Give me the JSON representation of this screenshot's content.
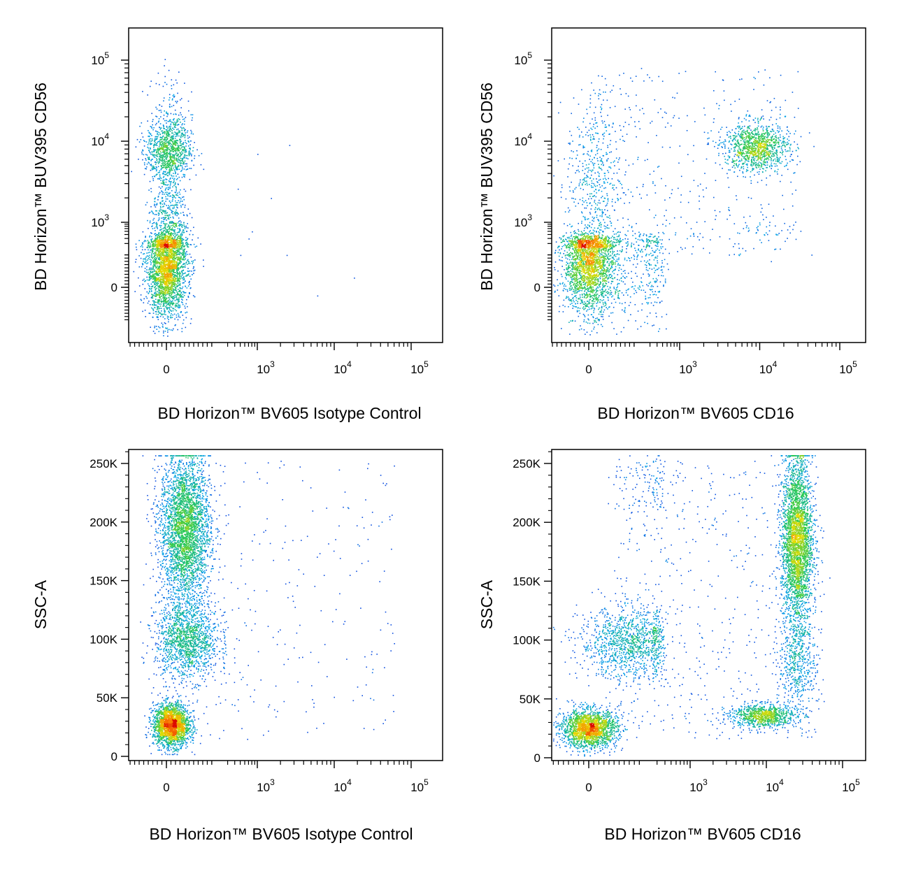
{
  "chart_data": [
    {
      "type": "scatter",
      "subtype": "flow-cytometry-density-dot-plot",
      "xlabel": "BD Horizon™ BV605 Isotype Control",
      "ylabel": "BD Horizon™ BUV395 CD56",
      "xscale": "biexponential",
      "yscale": "biexponential",
      "xticks": [
        {
          "value": 0,
          "label": "0"
        },
        {
          "value": 1000,
          "label": "10",
          "exp": "3"
        },
        {
          "value": 10000,
          "label": "10",
          "exp": "4"
        },
        {
          "value": 100000,
          "label": "10",
          "exp": "5"
        }
      ],
      "yticks": [
        {
          "value": 0,
          "label": "0"
        },
        {
          "value": 1000,
          "label": "10",
          "exp": "3"
        },
        {
          "value": 10000,
          "label": "10",
          "exp": "4"
        },
        {
          "value": 100000,
          "label": "10",
          "exp": "5"
        }
      ],
      "populations": [
        {
          "x": 0,
          "y": 120,
          "sx": 45,
          "sy": 150,
          "n": 2600,
          "hot": true
        },
        {
          "x": 10,
          "y": 8000,
          "sx": 50,
          "sy_log": 0.18,
          "n": 900
        },
        {
          "x": 5,
          "y": 1200,
          "sx": 40,
          "sy_log": 0.45,
          "n": 700
        },
        {
          "x": 10,
          "y": 25000,
          "sx": 40,
          "sy_log": 0.25,
          "n": 120
        }
      ],
      "sparse_points": [
        [
          500,
          200
        ],
        [
          800,
          600
        ],
        [
          1500,
          2000
        ],
        [
          2600,
          9000
        ],
        [
          6000,
          -50
        ],
        [
          18000,
          60
        ],
        [
          1000,
          7000
        ],
        [
          450,
          2600
        ],
        [
          700,
          400
        ],
        [
          2400,
          200
        ]
      ]
    },
    {
      "type": "scatter",
      "subtype": "flow-cytometry-density-dot-plot",
      "xlabel": "BD Horizon™ BV605 CD16",
      "ylabel": "BD Horizon™ BUV395 CD56",
      "xscale": "biexponential",
      "yscale": "biexponential",
      "xticks": [
        {
          "value": 0,
          "label": "0"
        },
        {
          "value": 1000,
          "label": "10",
          "exp": "3"
        },
        {
          "value": 10000,
          "label": "10",
          "exp": "4"
        },
        {
          "value": 100000,
          "label": "10",
          "exp": "5"
        }
      ],
      "yticks": [
        {
          "value": 0,
          "label": "0"
        },
        {
          "value": 1000,
          "label": "10",
          "exp": "3"
        },
        {
          "value": 10000,
          "label": "10",
          "exp": "4"
        },
        {
          "value": 100000,
          "label": "10",
          "exp": "5"
        }
      ],
      "populations": [
        {
          "x": 0,
          "y": 150,
          "sx": 55,
          "sy": 150,
          "n": 2200,
          "hot": true
        },
        {
          "x": 9000,
          "y": 8500,
          "sx_log": 0.2,
          "sy_log": 0.15,
          "n": 1100
        },
        {
          "x": 150,
          "y": 150,
          "sx": 180,
          "sy": 180,
          "n": 600
        },
        {
          "x": 20,
          "y": 3000,
          "sx": 60,
          "sy_log": 0.55,
          "n": 500
        },
        {
          "x": 12000,
          "y": 700,
          "sx_log": 0.2,
          "sy_log": 0.25,
          "n": 40
        }
      ],
      "sparse_scatter": {
        "n": 380,
        "xmin": -100,
        "xmax": 30000,
        "ymin": 200,
        "ymax": 80000
      }
    },
    {
      "type": "scatter",
      "subtype": "flow-cytometry-density-dot-plot",
      "xlabel": "BD Horizon™ BV605 Isotype Control",
      "ylabel": "SSC-A",
      "xscale": "biexponential",
      "yscale": "linear",
      "ylim": [
        0,
        262144
      ],
      "xticks": [
        {
          "value": 0,
          "label": "0"
        },
        {
          "value": 1000,
          "label": "10",
          "exp": "3"
        },
        {
          "value": 10000,
          "label": "10",
          "exp": "4"
        },
        {
          "value": 100000,
          "label": "10",
          "exp": "5"
        }
      ],
      "yticks": [
        {
          "value": 0,
          "label": "0"
        },
        {
          "value": 50000,
          "label": "50K"
        },
        {
          "value": 100000,
          "label": "100K"
        },
        {
          "value": 150000,
          "label": "150K"
        },
        {
          "value": 200000,
          "label": "200K"
        },
        {
          "value": 250000,
          "label": "250K"
        }
      ],
      "populations": [
        {
          "x": 20,
          "y": 27000,
          "sx": 40,
          "sy": 9000,
          "n": 2200,
          "hot": true
        },
        {
          "x": 80,
          "y": 195000,
          "sx": 55,
          "sy": 32000,
          "n": 3400,
          "hot": true
        },
        {
          "x": 90,
          "y": 100000,
          "sx": 70,
          "sy": 17000,
          "n": 1500
        }
      ],
      "sparse_scatter": {
        "n": 230,
        "xmin": 150,
        "xmax": 60000,
        "ymin": 15000,
        "ymax": 255000
      }
    },
    {
      "type": "scatter",
      "subtype": "flow-cytometry-density-dot-plot",
      "xlabel": "BD Horizon™ BV605 CD16",
      "ylabel": "SSC-A",
      "xscale": "biexponential",
      "yscale": "linear",
      "ylim": [
        0,
        262144
      ],
      "xticks": [
        {
          "value": 0,
          "label": "0"
        },
        {
          "value": 1000,
          "label": "10",
          "exp": "3"
        },
        {
          "value": 10000,
          "label": "10",
          "exp": "4"
        },
        {
          "value": 100000,
          "label": "10",
          "exp": "5"
        }
      ],
      "yticks": [
        {
          "value": 0,
          "label": "0"
        },
        {
          "value": 50000,
          "label": "50K"
        },
        {
          "value": 100000,
          "label": "100K"
        },
        {
          "value": 150000,
          "label": "150K"
        },
        {
          "value": 200000,
          "label": "200K"
        },
        {
          "value": 250000,
          "label": "250K"
        }
      ],
      "populations": [
        {
          "x": 0,
          "y": 25000,
          "sx": 55,
          "sy": 8000,
          "n": 2000,
          "hot": true
        },
        {
          "x": 25000,
          "y": 185000,
          "sx_log": 0.1,
          "sy": 35000,
          "n": 3200,
          "hot": true
        },
        {
          "x": 160,
          "y": 98000,
          "sx": 100,
          "sy": 15000,
          "n": 1200
        },
        {
          "x": 9000,
          "y": 36000,
          "sx_log": 0.22,
          "sy": 5000,
          "n": 900
        },
        {
          "x": 25000,
          "y": 85000,
          "sx_log": 0.12,
          "sy": 20000,
          "n": 500
        },
        {
          "x": 250,
          "y": 230000,
          "sx": 80,
          "sy": 15000,
          "n": 100
        }
      ],
      "sparse_scatter": {
        "n": 600,
        "xmin": 100,
        "xmax": 60000,
        "ymin": 15000,
        "ymax": 255000
      }
    }
  ]
}
